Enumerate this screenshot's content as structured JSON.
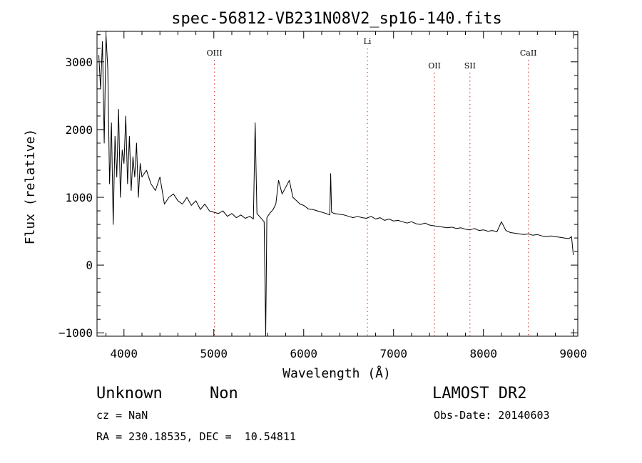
{
  "chart_data": {
    "type": "line",
    "title": "spec-56812-VB231N08V2_sp16-140.fits",
    "xlabel": "Wavelength (Å)",
    "ylabel": "Flux (relative)",
    "xlim": [
      3700,
      9050
    ],
    "ylim": [
      -1050,
      3450
    ],
    "xticks": [
      4000,
      5000,
      6000,
      7000,
      8000,
      9000
    ],
    "yticks": [
      -1000,
      0,
      1000,
      2000,
      3000
    ],
    "grid": false,
    "line_color": "#000000",
    "marker_color": "#cc2222",
    "line_markers": [
      {
        "label": "OIII",
        "x": 5007
      },
      {
        "label": "Li",
        "x": 6708
      },
      {
        "label": "OII",
        "x": 7455
      },
      {
        "label": "SII",
        "x": 7850
      },
      {
        "label": "CaII",
        "x": 8500
      }
    ],
    "series": [
      {
        "x": [
          3720,
          3740,
          3760,
          3780,
          3800,
          3820,
          3840,
          3860,
          3880,
          3900,
          3920,
          3940,
          3960,
          3980,
          4000,
          4020,
          4040,
          4060,
          4080,
          4100,
          4120,
          4140,
          4160,
          4180,
          4200,
          4250,
          4300,
          4350,
          4400,
          4450,
          4500,
          4550,
          4600,
          4650,
          4700,
          4750,
          4800,
          4850,
          4900,
          4950,
          5000,
          5050,
          5100,
          5150,
          5200,
          5250,
          5300,
          5350,
          5400,
          5440,
          5460,
          5480,
          5520,
          5560,
          5577,
          5590,
          5620,
          5660,
          5690,
          5720,
          5760,
          5800,
          5840,
          5880,
          5920,
          5960,
          6000,
          6050,
          6100,
          6150,
          6200,
          6250,
          6290,
          6300,
          6310,
          6340,
          6400,
          6450,
          6500,
          6550,
          6600,
          6650,
          6700,
          6750,
          6800,
          6850,
          6900,
          6950,
          7000,
          7050,
          7100,
          7150,
          7200,
          7250,
          7300,
          7350,
          7400,
          7450,
          7500,
          7550,
          7600,
          7650,
          7700,
          7750,
          7800,
          7850,
          7900,
          7950,
          8000,
          8050,
          8100,
          8150,
          8200,
          8250,
          8300,
          8350,
          8400,
          8450,
          8500,
          8550,
          8600,
          8650,
          8700,
          8750,
          8800,
          8850,
          8900,
          8950,
          8980,
          9000
        ],
        "values": [
          3100,
          2600,
          3300,
          1800,
          3400,
          2900,
          1200,
          2100,
          600,
          1900,
          1300,
          2300,
          1000,
          1700,
          1500,
          2200,
          1200,
          1900,
          1100,
          1600,
          1300,
          1800,
          1000,
          1500,
          1300,
          1400,
          1200,
          1100,
          1300,
          900,
          1000,
          1050,
          950,
          900,
          1000,
          880,
          950,
          820,
          900,
          800,
          780,
          760,
          800,
          720,
          760,
          700,
          740,
          690,
          720,
          680,
          2100,
          760,
          700,
          640,
          -1050,
          700,
          760,
          820,
          900,
          1250,
          1050,
          1150,
          1250,
          1000,
          950,
          900,
          880,
          830,
          820,
          800,
          780,
          760,
          740,
          1350,
          780,
          760,
          750,
          740,
          720,
          700,
          720,
          700,
          690,
          720,
          680,
          700,
          660,
          680,
          650,
          660,
          640,
          620,
          640,
          610,
          600,
          620,
          590,
          580,
          570,
          560,
          550,
          560,
          540,
          550,
          530,
          520,
          540,
          510,
          520,
          500,
          510,
          490,
          640,
          510,
          480,
          470,
          460,
          450,
          460,
          440,
          450,
          430,
          420,
          430,
          420,
          410,
          400,
          390,
          420,
          150
        ]
      }
    ]
  },
  "footer": {
    "object_class": "Unknown",
    "subclass": "Non",
    "survey": "LAMOST DR2",
    "redshift": "cz = NaN",
    "obs_date": "Obs-Date: 20140603",
    "coords": "RA = 230.18535, DEC =  10.54811"
  }
}
